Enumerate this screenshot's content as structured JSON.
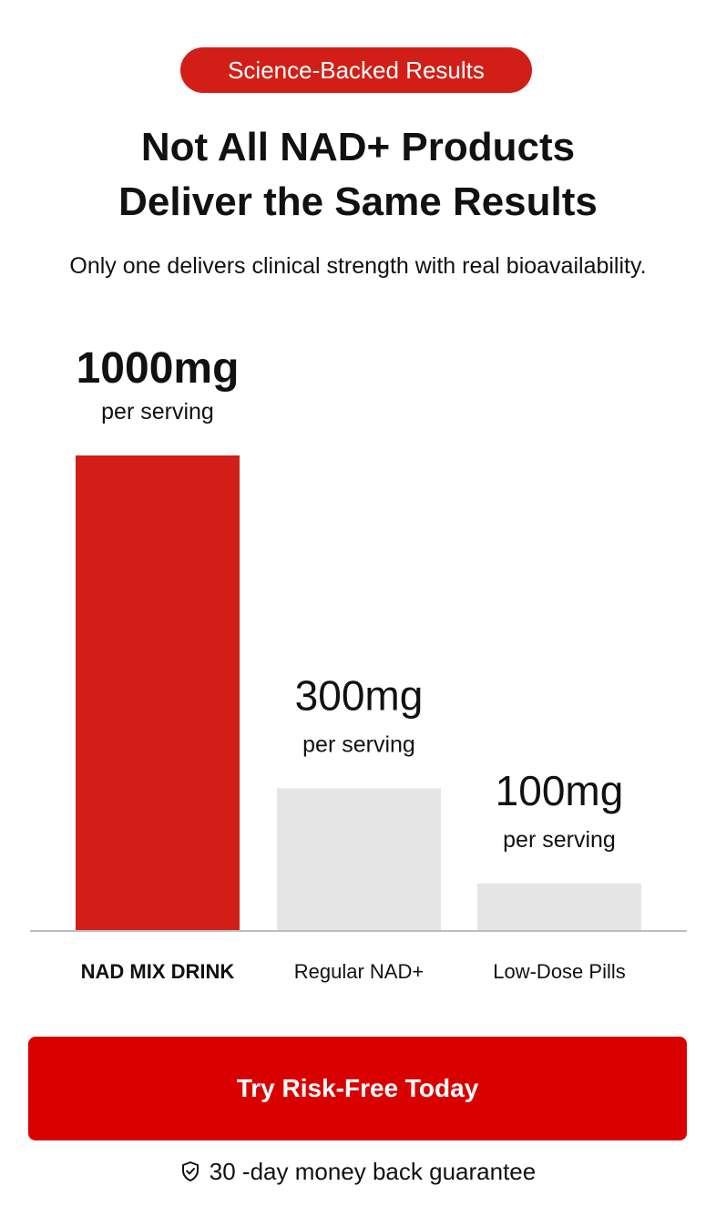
{
  "badge": {
    "label": "Science-Backed Results"
  },
  "headline": {
    "line1": "Not All NAD+ Products",
    "line2": "Deliver the Same Results"
  },
  "subtitle": "Only one delivers clinical strength with real bioavailability.",
  "colors": {
    "accent": "#d11f17",
    "cta": "#d90000",
    "muted_bar": "#e5e5e5",
    "axis": "#bdbdbd"
  },
  "chart_data": {
    "type": "bar",
    "categories": [
      "NAD MIX DRINK",
      "Regular NAD+",
      "Low-Dose Pills"
    ],
    "values": [
      1000,
      300,
      100
    ],
    "value_labels": [
      "1000mg",
      "300mg",
      "100mg"
    ],
    "unit_label": "per serving",
    "highlight_index": 0,
    "xlabel": "",
    "ylabel": "",
    "grid": false
  },
  "cta": {
    "label": "Try Risk-Free Today"
  },
  "guarantee": {
    "icon": "shield-check-icon",
    "text": "30 -day money back guarantee"
  }
}
